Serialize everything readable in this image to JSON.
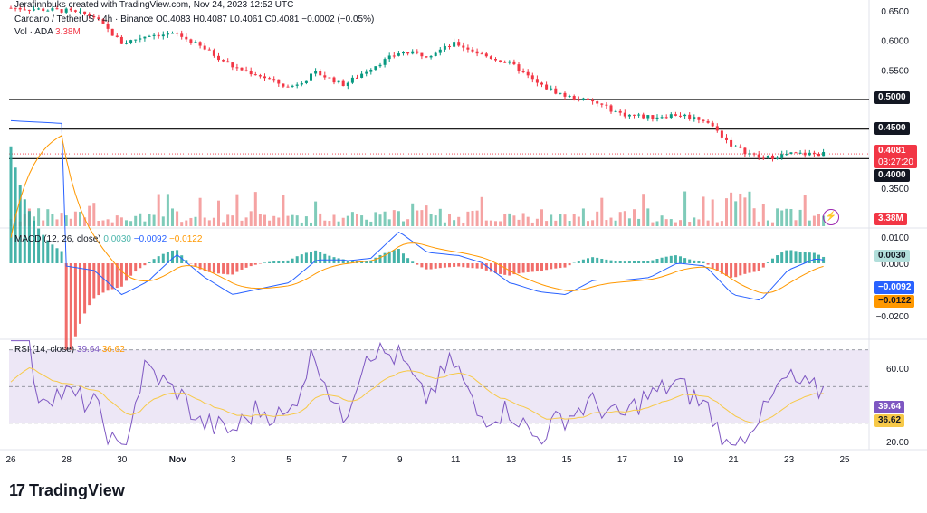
{
  "header": {
    "top_line": "Jerafinnbuks created with TradingView.com, Nov 24, 2023 12:52 UTC",
    "title": "Cardano / TetherUS · 4h · Binance",
    "ohlc": "O0.4083 H0.4087 L0.4061 C0.4081 −0.0002 (−0.05%)",
    "vol_label": "Vol · ADA",
    "vol_value": "3.38M",
    "macd_label": "MACD (12, 26, close)",
    "macd_hist": "0.0030",
    "macd_line": "−0.0092",
    "macd_signal": "−0.0122",
    "rsi_label": "RSI (14, close)",
    "rsi_value": "39.64",
    "rsi_ma": "36.62"
  },
  "price_tags": {
    "current_price": "0.4081",
    "countdown": "03:27:20",
    "vol_tag": "3.38M",
    "macd_hist_tag": "0.0030",
    "macd_line_tag": "−0.0092",
    "macd_signal_tag": "−0.0122",
    "rsi_tag": "39.64",
    "rsi_ma_tag": "36.62"
  },
  "axis": {
    "price_ticks": [
      "0.6500",
      "0.6000",
      "0.5500",
      "0.5000",
      "0.4500",
      "0.4000",
      "0.3500"
    ],
    "highlighted_levels": [
      "0.5000",
      "0.4500",
      "0.4000"
    ],
    "macd_ticks": [
      "0.0100",
      "0.0000",
      "−0.0200"
    ],
    "rsi_ticks": [
      "60.00",
      "20.00"
    ],
    "x_ticks": [
      "26",
      "28",
      "30",
      "Nov",
      "3",
      "5",
      "7",
      "9",
      "11",
      "13",
      "15",
      "17",
      "19",
      "21",
      "23",
      "25"
    ]
  },
  "brand": {
    "name": "TradingView"
  },
  "colors": {
    "up": "#089981",
    "down": "#f23645",
    "vol_up": "#7fcbb9",
    "vol_down": "#f5a3a3",
    "macd_line": "#2962ff",
    "signal": "#ff9800",
    "rsi": "#7e57c2",
    "rsi_ma": "#f7c948",
    "rsi_band": "#ede7f6",
    "level_line": "#000000"
  },
  "chart_data": {
    "type": "candlestick",
    "timeframe": "4h",
    "symbol": "ADA/USDT",
    "horizontal_levels": [
      0.5,
      0.45,
      0.4
    ],
    "close_path": [
      {
        "date": "2023-10-26",
        "price": 0.655
      },
      {
        "date": "2023-10-28",
        "price": 0.65
      },
      {
        "date": "2023-10-29",
        "price": 0.64
      },
      {
        "date": "2023-10-30",
        "price": 0.595
      },
      {
        "date": "2023-10-31",
        "price": 0.61
      },
      {
        "date": "2023-11-01",
        "price": 0.61
      },
      {
        "date": "2023-11-02",
        "price": 0.585
      },
      {
        "date": "2023-11-03",
        "price": 0.555
      },
      {
        "date": "2023-11-04",
        "price": 0.54
      },
      {
        "date": "2023-11-05",
        "price": 0.52
      },
      {
        "date": "2023-11-06",
        "price": 0.545
      },
      {
        "date": "2023-11-07",
        "price": 0.525
      },
      {
        "date": "2023-11-08",
        "price": 0.555
      },
      {
        "date": "2023-11-09",
        "price": 0.58
      },
      {
        "date": "2023-11-10",
        "price": 0.575
      },
      {
        "date": "2023-11-11",
        "price": 0.595
      },
      {
        "date": "2023-11-12",
        "price": 0.575
      },
      {
        "date": "2023-11-13",
        "price": 0.56
      },
      {
        "date": "2023-11-14",
        "price": 0.525
      },
      {
        "date": "2023-11-15",
        "price": 0.505
      },
      {
        "date": "2023-11-16",
        "price": 0.495
      },
      {
        "date": "2023-11-17",
        "price": 0.475
      },
      {
        "date": "2023-11-18",
        "price": 0.47
      },
      {
        "date": "2023-11-19",
        "price": 0.475
      },
      {
        "date": "2023-11-20",
        "price": 0.465
      },
      {
        "date": "2023-11-21",
        "price": 0.42
      },
      {
        "date": "2023-11-22",
        "price": 0.4
      },
      {
        "date": "2023-11-23",
        "price": 0.408
      },
      {
        "date": "2023-11-24",
        "price": 0.408
      }
    ],
    "macd": {
      "hist": 0.003,
      "line": -0.0092,
      "signal": -0.0122
    },
    "rsi": {
      "value": 39.64,
      "ma": 36.62
    },
    "volume_last": "3.38M"
  }
}
